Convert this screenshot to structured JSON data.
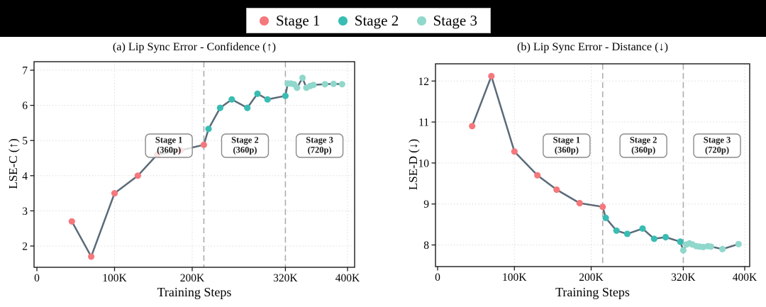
{
  "topbar": {
    "bg": "#000000"
  },
  "legend": {
    "items": [
      {
        "label": "Stage 1",
        "color": "#F4787C"
      },
      {
        "label": "Stage 2",
        "color": "#39BCB3"
      },
      {
        "label": "Stage 3",
        "color": "#8FD8CB"
      }
    ]
  },
  "style": {
    "line_color": "#5A6A78",
    "grid_color": "#DCDCDC",
    "separator_color": "#ADADAD",
    "axis_color": "#1a1a1a",
    "stage_box_border": "#8a8a8a"
  },
  "chart_data": [
    {
      "type": "line",
      "title": "(a) Lip Sync Error - Confidence (↑)",
      "xlabel": "Training Steps",
      "ylabel": "LSE-C (↑)",
      "x_unit": "K steps",
      "xlim": [
        -4,
        409
      ],
      "ylim": [
        1.4,
        7.25
      ],
      "grid": true,
      "xticks": [
        {
          "v": 0,
          "label": "0"
        },
        {
          "v": 100,
          "label": "100K"
        },
        {
          "v": 200,
          "label": "200K"
        },
        {
          "v": 320,
          "label": "320K"
        },
        {
          "v": 400,
          "label": "400K"
        }
      ],
      "yticks": [
        2,
        3,
        4,
        5,
        6,
        7
      ],
      "stage_separators": [
        215,
        320
      ],
      "stage_boxes": [
        {
          "k": 170,
          "lines": [
            "Stage 1",
            "(360p)"
          ]
        },
        {
          "k": 268,
          "lines": [
            "Stage 2",
            "(360p)"
          ]
        },
        {
          "k": 364,
          "lines": [
            "Stage 3",
            "(720p)"
          ]
        }
      ],
      "series": [
        {
          "name": "Stage 1",
          "points": [
            [
              45,
              2.7
            ],
            [
              70,
              1.7
            ],
            [
              100,
              3.5
            ],
            [
              130,
              4.0
            ],
            [
              155,
              4.6
            ],
            [
              185,
              4.72
            ],
            [
              215,
              4.88
            ]
          ]
        },
        {
          "name": "Stage 2",
          "points": [
            [
              221,
              5.33
            ],
            [
              236,
              5.93
            ],
            [
              251,
              6.17
            ],
            [
              271,
              5.93
            ],
            [
              284,
              6.33
            ],
            [
              297,
              6.17
            ],
            [
              320,
              6.27
            ]
          ]
        },
        {
          "name": "Stage 3",
          "points": [
            [
              323,
              6.62
            ],
            [
              327,
              6.62
            ],
            [
              331,
              6.6
            ],
            [
              335,
              6.5
            ],
            [
              342,
              6.78
            ],
            [
              347,
              6.5
            ],
            [
              352,
              6.55
            ],
            [
              356,
              6.58
            ],
            [
              371,
              6.6
            ],
            [
              382,
              6.61
            ],
            [
              393,
              6.6
            ]
          ]
        }
      ]
    },
    {
      "type": "line",
      "title": "(b) Lip Sync Error - Distance (↓)",
      "xlabel": "Training Steps",
      "ylabel": "LSE-D (↓)",
      "x_unit": "K steps",
      "xlim": [
        0,
        405
      ],
      "ylim": [
        7.45,
        12.45
      ],
      "grid": true,
      "xticks": [
        {
          "v": 0,
          "label": "0"
        },
        {
          "v": 100,
          "label": "100K"
        },
        {
          "v": 200,
          "label": "200K"
        },
        {
          "v": 320,
          "label": "320K"
        },
        {
          "v": 400,
          "label": "400K"
        }
      ],
      "yticks": [
        8,
        9,
        10,
        11,
        12
      ],
      "stage_separators": [
        215,
        320
      ],
      "stage_boxes": [
        {
          "k": 168,
          "lines": [
            "Stage 1",
            "(360p)"
          ]
        },
        {
          "k": 268,
          "lines": [
            "Stage 2",
            "(360p)"
          ]
        },
        {
          "k": 364,
          "lines": [
            "Stage 3",
            "(720p)"
          ]
        }
      ],
      "series": [
        {
          "name": "Stage 1",
          "points": [
            [
              45,
              10.9
            ],
            [
              70,
              12.12
            ],
            [
              100,
              10.28
            ],
            [
              130,
              9.7
            ],
            [
              155,
              9.35
            ],
            [
              185,
              9.02
            ],
            [
              215,
              8.93
            ]
          ]
        },
        {
          "name": "Stage 2",
          "points": [
            [
              219,
              8.66
            ],
            [
              233,
              8.35
            ],
            [
              247,
              8.27
            ],
            [
              267,
              8.4
            ],
            [
              282,
              8.15
            ],
            [
              297,
              8.19
            ],
            [
              316,
              8.08
            ]
          ]
        },
        {
          "name": "Stage 3",
          "points": [
            [
              320,
              7.87
            ],
            [
              324,
              8.01
            ],
            [
              328,
              8.04
            ],
            [
              332,
              8.01
            ],
            [
              337,
              7.97
            ],
            [
              341,
              7.96
            ],
            [
              346,
              7.95
            ],
            [
              352,
              7.97
            ],
            [
              356,
              7.96
            ],
            [
              371,
              7.9
            ],
            [
              392,
              8.02
            ]
          ]
        }
      ]
    }
  ]
}
